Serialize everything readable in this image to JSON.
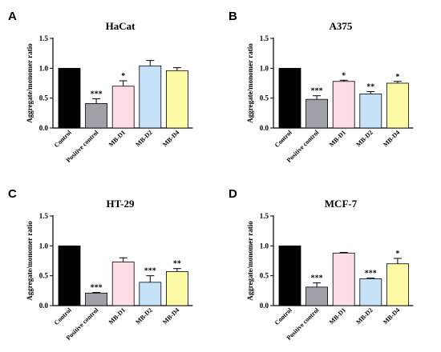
{
  "categories": [
    "Control",
    "Positive control",
    "MB-D1",
    "MB-D2",
    "MB-D4"
  ],
  "bar_colors": [
    "#000000",
    "#a0a0a8",
    "#fcdde3",
    "#c6e2f8",
    "#fcfaa5"
  ],
  "chart_data": [
    {
      "type": "bar",
      "panel": "A",
      "title": "HaCat",
      "ylabel": "Aggregate/monomer ratio",
      "categories": [
        "Control",
        "Positive control",
        "MB-D1",
        "MB-D2",
        "MB-D4"
      ],
      "values": [
        1.0,
        0.41,
        0.7,
        1.04,
        0.96
      ],
      "errors": [
        0.0,
        0.08,
        0.09,
        0.09,
        0.05
      ],
      "significance": [
        "",
        "***",
        "*",
        "",
        ""
      ],
      "ylim": [
        0,
        1.5
      ],
      "yticks": [
        "0.0",
        "0.5",
        "1.0",
        "1.5"
      ]
    },
    {
      "type": "bar",
      "panel": "B",
      "title": "A375",
      "ylabel": "Aggregate/monomer ratio",
      "categories": [
        "Control",
        "Positive control",
        "MB-D1",
        "MB-D2",
        "MB-D4"
      ],
      "values": [
        1.0,
        0.48,
        0.78,
        0.57,
        0.75
      ],
      "errors": [
        0.0,
        0.06,
        0.02,
        0.04,
        0.03
      ],
      "significance": [
        "",
        "***",
        "*",
        "**",
        "*"
      ],
      "ylim": [
        0,
        1.5
      ],
      "yticks": [
        "0.0",
        "0.5",
        "1.0",
        "1.5"
      ]
    },
    {
      "type": "bar",
      "panel": "C",
      "title": "HT-29",
      "ylabel": "Aggregate/monomer ratio",
      "categories": [
        "Control",
        "Positive control",
        "MB-D1",
        "MB-D2",
        "MB-D4"
      ],
      "values": [
        1.0,
        0.21,
        0.73,
        0.39,
        0.57
      ],
      "errors": [
        0.0,
        0.01,
        0.07,
        0.11,
        0.05
      ],
      "significance": [
        "",
        "***",
        "",
        "***",
        "**"
      ],
      "ylim": [
        0,
        1.5
      ],
      "yticks": [
        "0.0",
        "0.5",
        "1.0",
        "1.5"
      ]
    },
    {
      "type": "bar",
      "panel": "D",
      "title": "MCF-7",
      "ylabel": "Aggregate/monomer ratio",
      "categories": [
        "Control",
        "Positive control",
        "MB-D1",
        "MB-D2",
        "MB-D4"
      ],
      "values": [
        1.0,
        0.31,
        0.88,
        0.45,
        0.7
      ],
      "errors": [
        0.0,
        0.07,
        0.01,
        0.01,
        0.09
      ],
      "significance": [
        "",
        "***",
        "",
        "***",
        "*"
      ],
      "ylim": [
        0,
        1.5
      ],
      "yticks": [
        "0.0",
        "0.5",
        "1.0",
        "1.5"
      ]
    }
  ]
}
